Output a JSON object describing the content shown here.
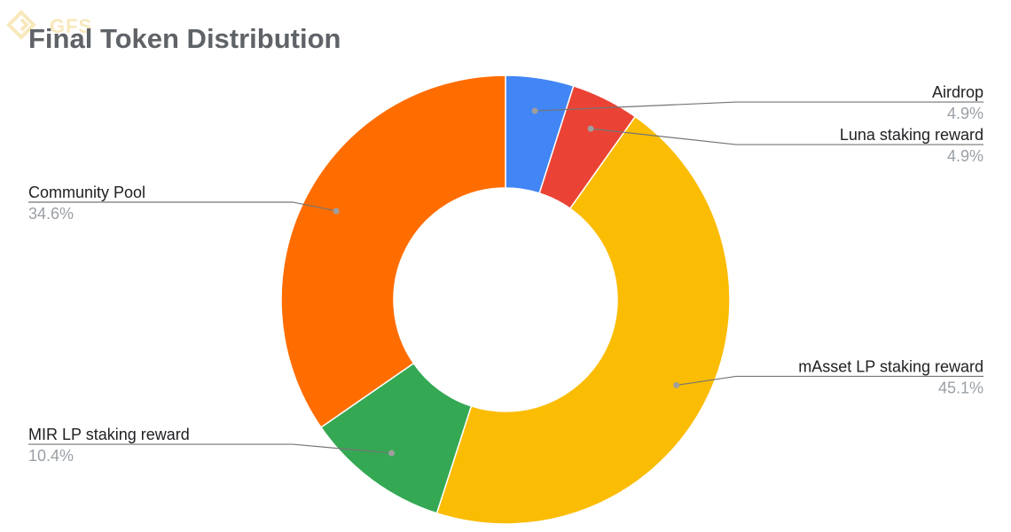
{
  "watermark": {
    "text": "GFS"
  },
  "chart_data": {
    "type": "pie",
    "style": "donut",
    "title": "Final Token Distribution",
    "slices": [
      {
        "label": "Airdrop",
        "value": 4.9,
        "display": "4.9%",
        "color": "#4285f4",
        "label_side": "right"
      },
      {
        "label": "Luna staking reward",
        "value": 4.9,
        "display": "4.9%",
        "color": "#ea4335",
        "label_side": "right"
      },
      {
        "label": "mAsset LP staking reward",
        "value": 45.1,
        "display": "45.1%",
        "color": "#fbbc04",
        "label_side": "right"
      },
      {
        "label": "MIR LP staking reward",
        "value": 10.4,
        "display": "10.4%",
        "color": "#34a853",
        "label_side": "left"
      },
      {
        "label": "Community Pool",
        "value": 34.6,
        "display": "34.6%",
        "color": "#ff6d01",
        "label_side": "left"
      }
    ]
  }
}
